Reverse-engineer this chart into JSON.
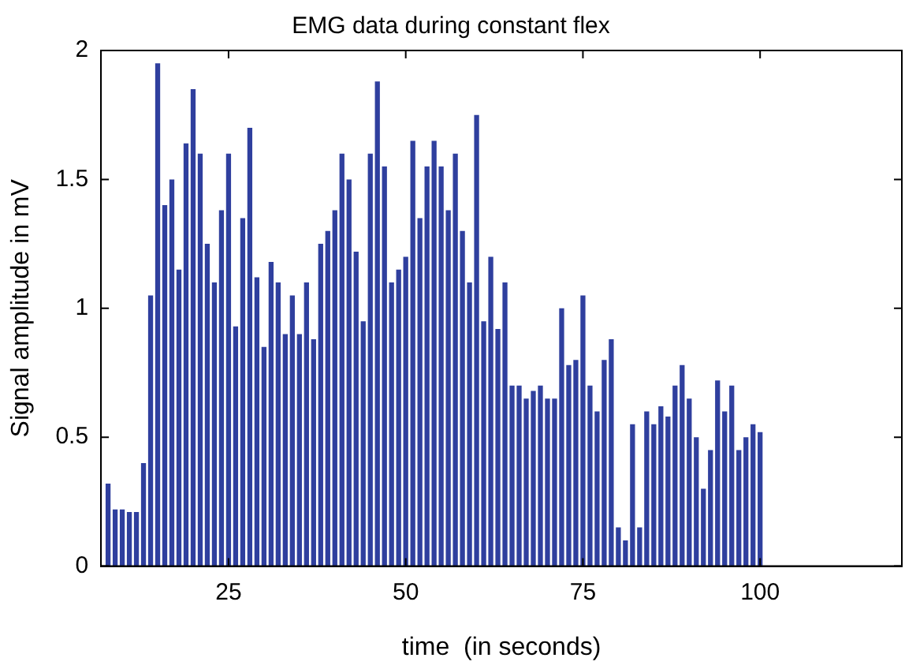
{
  "chart_data": {
    "type": "bar",
    "title": "EMG data during constant flex",
    "xlabel": "time  (in seconds)",
    "ylabel": "Signal amplitude in mV",
    "x": [
      8,
      9,
      10,
      11,
      12,
      13,
      14,
      15,
      16,
      17,
      18,
      19,
      20,
      21,
      22,
      23,
      24,
      25,
      26,
      27,
      28,
      29,
      30,
      31,
      32,
      33,
      34,
      35,
      36,
      37,
      38,
      39,
      40,
      41,
      42,
      43,
      44,
      45,
      46,
      47,
      48,
      49,
      50,
      51,
      52,
      53,
      54,
      55,
      56,
      57,
      58,
      59,
      60,
      61,
      62,
      63,
      64,
      65,
      66,
      67,
      68,
      69,
      70,
      71,
      72,
      73,
      74,
      75,
      76,
      77,
      78,
      79,
      80,
      81,
      82,
      83,
      84,
      85,
      86,
      87,
      88,
      89,
      90,
      91,
      92,
      93,
      94,
      95,
      96,
      97,
      98,
      99,
      100
    ],
    "values": [
      0.32,
      0.22,
      0.22,
      0.21,
      0.21,
      0.4,
      1.05,
      1.95,
      1.4,
      1.5,
      1.15,
      1.64,
      1.85,
      1.6,
      1.25,
      1.1,
      1.38,
      1.6,
      0.93,
      1.35,
      1.7,
      1.12,
      0.85,
      1.18,
      1.1,
      0.9,
      1.05,
      0.9,
      1.1,
      0.88,
      1.25,
      1.3,
      1.38,
      1.6,
      1.5,
      1.22,
      0.95,
      1.6,
      1.88,
      1.55,
      1.1,
      1.15,
      1.2,
      1.65,
      1.35,
      1.55,
      1.65,
      1.55,
      1.38,
      1.6,
      1.3,
      1.1,
      1.75,
      0.95,
      1.2,
      0.92,
      1.1,
      0.7,
      0.7,
      0.65,
      0.68,
      0.7,
      0.65,
      0.65,
      1.0,
      0.78,
      0.8,
      1.05,
      0.7,
      0.6,
      0.8,
      0.88,
      0.15,
      0.1,
      0.55,
      0.15,
      0.6,
      0.55,
      0.62,
      0.58,
      0.7,
      0.78,
      0.65,
      0.5,
      0.3,
      0.45,
      0.72,
      0.6,
      0.7,
      0.45,
      0.5,
      0.55,
      0.52
    ],
    "color": "#2f3f9e",
    "xlim": [
      7,
      120
    ],
    "xticks": [
      25,
      50,
      75,
      100
    ],
    "ylim": [
      0,
      2
    ],
    "yticks": [
      0,
      {
        "value": 0.5,
        "label": "0.5"
      },
      1,
      {
        "value": 1.5,
        "label": "1.5"
      },
      2
    ],
    "grid": false,
    "legend": false
  }
}
